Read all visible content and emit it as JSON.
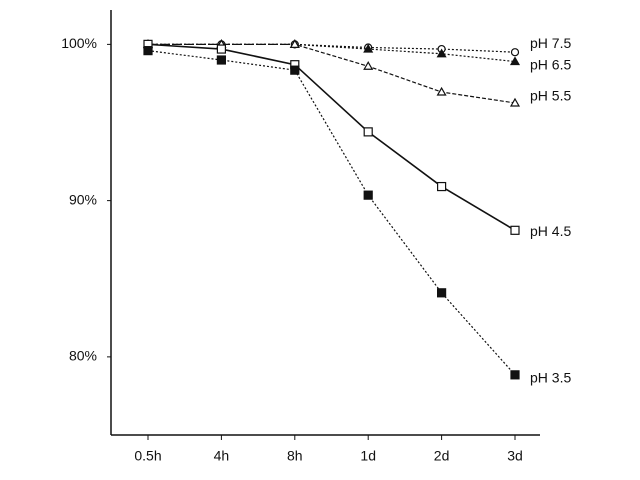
{
  "chart_data": {
    "type": "line",
    "categories": [
      "0.5h",
      "4h",
      "8h",
      "1d",
      "2d",
      "3d"
    ],
    "ylim": [
      75,
      102.2
    ],
    "yticks": [
      {
        "value": 80,
        "label": "80%"
      },
      {
        "value": 90,
        "label": "90%"
      },
      {
        "value": 100,
        "label": "100%"
      }
    ],
    "series": [
      {
        "name": "pH 7.5",
        "color": "#111111",
        "marker": "open-circle",
        "line": "dotted",
        "values": [
          100,
          100,
          100,
          99.8,
          99.7,
          99.5
        ]
      },
      {
        "name": "pH 6.5",
        "color": "#111111",
        "marker": "filled-triangle",
        "line": "dotted",
        "values": [
          100,
          100,
          100,
          99.7,
          99.4,
          98.9
        ]
      },
      {
        "name": "pH 5.5",
        "color": "#111111",
        "marker": "open-triangle",
        "line": "dashed",
        "values": [
          100,
          100,
          100,
          98.6,
          96.95,
          96.25
        ]
      },
      {
        "name": "pH 4.5",
        "color": "#111111",
        "marker": "open-square",
        "line": "solid",
        "values": [
          100,
          99.7,
          98.7,
          94.4,
          90.9,
          88.1
        ]
      },
      {
        "name": "pH 3.5",
        "color": "#111111",
        "marker": "filled-square",
        "line": "dotted",
        "values": [
          99.6,
          99.0,
          98.35,
          90.35,
          84.1,
          78.85
        ]
      }
    ]
  }
}
